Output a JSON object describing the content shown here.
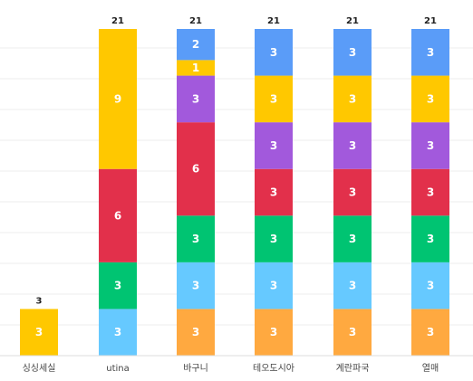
{
  "chart_data": {
    "type": "bar",
    "stacked": true,
    "categories": [
      "싱싱세실",
      "utina",
      "바구니",
      "테오도시아",
      "계란파국",
      "열매"
    ],
    "ylim": [
      0,
      21
    ],
    "grid": true,
    "totals": [
      3,
      21,
      21,
      21,
      21,
      21
    ],
    "series": [
      {
        "color": "#ffa940",
        "values": [
          0,
          0,
          3,
          3,
          3,
          3
        ]
      },
      {
        "color": "#66c9ff",
        "values": [
          0,
          3,
          3,
          3,
          3,
          3
        ]
      },
      {
        "color": "#00c472",
        "values": [
          0,
          3,
          3,
          3,
          3,
          3
        ]
      },
      {
        "color": "#e2304b",
        "values": [
          0,
          6,
          6,
          3,
          3,
          3
        ]
      },
      {
        "color": "#a259dc",
        "values": [
          0,
          0,
          3,
          3,
          3,
          3
        ]
      },
      {
        "color": "#ffc800",
        "values": [
          3,
          9,
          1,
          3,
          3,
          3
        ]
      },
      {
        "color": "#5a9cf8",
        "values": [
          0,
          0,
          2,
          3,
          3,
          3
        ]
      }
    ]
  }
}
